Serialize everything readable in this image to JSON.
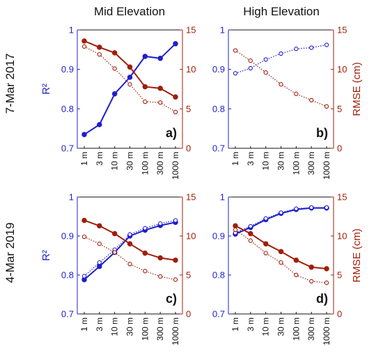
{
  "figure": {
    "columns": [
      "Mid Elevation",
      "High Elevation"
    ],
    "rows": [
      "7-Mar 2017",
      "4-Mar 2019"
    ],
    "left_axis_label": "R²",
    "right_axis_label": "RMSE (cm)",
    "colors": {
      "r2": "#1f1fcc",
      "rmse": "#a01e0a",
      "axis": "#111111"
    }
  },
  "chart_data": [
    {
      "type": "line",
      "panel": "a)",
      "column": "Mid Elevation",
      "row": "7-Mar 2017",
      "categories": [
        "1 m",
        "3 m",
        "10 m",
        "30 m",
        "100 m",
        "300 m",
        "1000 m"
      ],
      "ylabel": "R²",
      "y2label": "",
      "ylim": [
        0.7,
        1.0
      ],
      "yticks": [
        "0.7",
        "0.8",
        "0.9",
        "1"
      ],
      "y2lim": [
        0,
        15
      ],
      "y2ticks": [
        "0",
        "5",
        "10",
        "15"
      ],
      "series": [
        {
          "axis": "left",
          "style": "solid",
          "values": [
            0.735,
            0.76,
            0.838,
            0.88,
            0.933,
            0.928,
            0.965
          ]
        },
        {
          "axis": "right",
          "style": "solid",
          "values": [
            13.6,
            12.8,
            12.1,
            10.3,
            7.8,
            7.6,
            6.5
          ]
        },
        {
          "axis": "right",
          "style": "dotted",
          "values": [
            12.9,
            11.9,
            10.1,
            8.1,
            5.9,
            5.8,
            4.6
          ]
        }
      ]
    },
    {
      "type": "line",
      "panel": "b)",
      "column": "High Elevation",
      "row": "7-Mar 2017",
      "categories": [
        "1 m",
        "3 m",
        "10 m",
        "30 m",
        "100 m",
        "300 m",
        "1000 m"
      ],
      "ylabel": "",
      "y2label": "RMSE (cm)",
      "ylim": [
        0.7,
        1.0
      ],
      "yticks": [
        "0.7",
        "0.8",
        "0.9",
        "1"
      ],
      "y2lim": [
        0,
        15
      ],
      "y2ticks": [
        "0",
        "5",
        "10",
        "15"
      ],
      "series": [
        {
          "axis": "left",
          "style": "dotted",
          "values": [
            0.89,
            0.903,
            0.925,
            0.94,
            0.952,
            0.955,
            0.962
          ]
        },
        {
          "axis": "right",
          "style": "dotted",
          "values": [
            12.4,
            11.1,
            9.6,
            8.1,
            6.9,
            6.1,
            5.3
          ]
        }
      ]
    },
    {
      "type": "line",
      "panel": "c)",
      "column": "Mid Elevation",
      "row": "4-Mar 2019",
      "categories": [
        "1 m",
        "3 m",
        "10 m",
        "30 m",
        "100 m",
        "300 m",
        "1000 m"
      ],
      "ylabel": "R²",
      "y2label": "",
      "ylim": [
        0.7,
        1.0
      ],
      "yticks": [
        "0.7",
        "0.8",
        "0.9",
        "1"
      ],
      "y2lim": [
        0,
        15
      ],
      "y2ticks": [
        "0",
        "5",
        "10",
        "15"
      ],
      "series": [
        {
          "axis": "left",
          "style": "solid",
          "values": [
            0.788,
            0.822,
            0.858,
            0.9,
            0.915,
            0.927,
            0.935
          ]
        },
        {
          "axis": "left",
          "style": "dotted",
          "values": [
            0.797,
            0.832,
            0.865,
            0.904,
            0.92,
            0.932,
            0.94
          ]
        },
        {
          "axis": "right",
          "style": "solid",
          "values": [
            12.0,
            11.3,
            10.3,
            9.0,
            7.8,
            7.2,
            6.9
          ]
        },
        {
          "axis": "right",
          "style": "dotted",
          "values": [
            9.9,
            9.0,
            7.9,
            6.4,
            5.5,
            4.8,
            4.4
          ]
        }
      ]
    },
    {
      "type": "line",
      "panel": "d)",
      "column": "High Elevation",
      "row": "4-Mar 2019",
      "categories": [
        "1 m",
        "3 m",
        "10 m",
        "30 m",
        "100 m",
        "300 m",
        "1000 m"
      ],
      "ylabel": "",
      "y2label": "RMSE (cm)",
      "ylim": [
        0.7,
        1.0
      ],
      "yticks": [
        "0.7",
        "0.8",
        "0.9",
        "1"
      ],
      "y2lim": [
        0,
        15
      ],
      "y2ticks": [
        "0",
        "5",
        "10",
        "15"
      ],
      "series": [
        {
          "axis": "left",
          "style": "solid",
          "values": [
            0.905,
            0.922,
            0.942,
            0.958,
            0.968,
            0.972,
            0.972
          ]
        },
        {
          "axis": "left",
          "style": "dotted",
          "values": [
            0.908,
            0.925,
            0.945,
            0.96,
            0.97,
            0.973,
            0.973
          ]
        },
        {
          "axis": "right",
          "style": "solid",
          "values": [
            11.3,
            10.3,
            9.0,
            8.0,
            6.9,
            6.0,
            5.8
          ]
        },
        {
          "axis": "right",
          "style": "dotted",
          "values": [
            10.8,
            9.4,
            7.8,
            6.6,
            5.0,
            4.2,
            4.0
          ]
        }
      ]
    }
  ]
}
